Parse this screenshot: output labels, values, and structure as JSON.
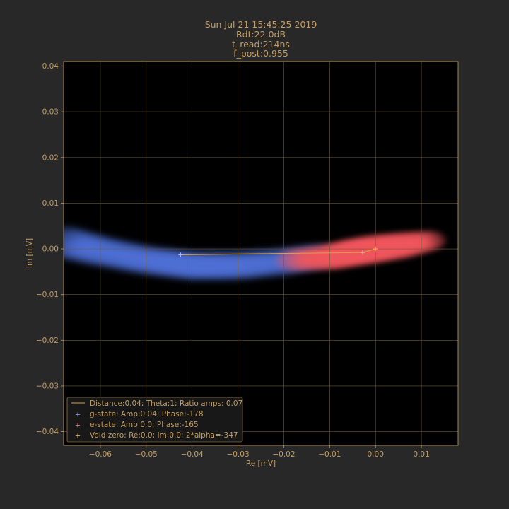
{
  "chart_data": {
    "type": "scatter",
    "title_lines": [
      "Sun Jul 21 15:45:25 2019",
      "Rdt:22.0dB",
      "t_read:214ns",
      "f_post:0.955"
    ],
    "xlabel": "Re [mV]",
    "ylabel": "Im [mV]",
    "xlim": [
      -0.068,
      0.018
    ],
    "ylim": [
      -0.043,
      0.041
    ],
    "xticks": [
      -0.06,
      -0.05,
      -0.04,
      -0.03,
      -0.02,
      -0.01,
      0.0,
      0.01
    ],
    "xtick_labels": [
      "−0.06",
      "−0.05",
      "−0.04",
      "−0.03",
      "−0.02",
      "−0.01",
      "0.00",
      "0.01"
    ],
    "yticks": [
      0.04,
      0.03,
      0.02,
      0.01,
      0.0,
      -0.01,
      -0.02,
      -0.03,
      -0.04
    ],
    "ytick_labels": [
      "0.04",
      "0.03",
      "0.02",
      "0.01",
      "0.00",
      "−0.01",
      "−0.02",
      "−0.03",
      "−0.04"
    ],
    "grid": true,
    "legend_position": "lower-left",
    "colors": {
      "background": "#282828",
      "plot_background": "#000000",
      "text": "#c49e61",
      "grid": "#6b5a3a",
      "g_state": "#4d6fd6",
      "e_state": "#f0555c",
      "line": "#d6a23c",
      "marker": "#d6b880"
    },
    "clouds": [
      {
        "name": "g-state",
        "path": [
          [
            -0.068,
            0.0015
          ],
          [
            -0.06,
            -0.0005
          ],
          [
            -0.05,
            -0.0025
          ],
          [
            -0.04,
            -0.0037
          ],
          [
            -0.03,
            -0.0037
          ],
          [
            -0.02,
            -0.0028
          ],
          [
            -0.012,
            -0.0015
          ]
        ],
        "spread": [
          0.0035,
          0.0032,
          0.003,
          0.003,
          0.003,
          0.0029,
          0.0026
        ]
      },
      {
        "name": "e-state",
        "path": [
          [
            -0.018,
            -0.0025
          ],
          [
            -0.01,
            -0.0018
          ],
          [
            -0.005,
            -0.0008
          ],
          [
            0.0,
            0.0
          ],
          [
            0.006,
            0.0008
          ],
          [
            0.012,
            0.0018
          ]
        ],
        "spread": [
          0.0024,
          0.0028,
          0.003,
          0.003,
          0.0028,
          0.0022
        ]
      }
    ],
    "distance_line": [
      [
        -0.0425,
        -0.0013
      ],
      [
        -0.0028,
        -0.0008
      ],
      [
        0.0,
        0.0
      ]
    ],
    "points": [
      {
        "name": "g-state",
        "x": -0.0425,
        "y": -0.0013
      },
      {
        "name": "e-state",
        "x": -0.0028,
        "y": -0.0008
      },
      {
        "name": "void-zero",
        "x": 0.0,
        "y": 0.0
      }
    ],
    "legend": [
      {
        "kind": "line",
        "label": "Distance:0.04; Theta:1; Ratio amps: 0.07"
      },
      {
        "kind": "g-marker",
        "label": "g-state: Amp:0.04; Phase:-178"
      },
      {
        "kind": "e-marker",
        "label": "e-state: Amp:0.0; Phase:-165"
      },
      {
        "kind": "void-marker",
        "label": "Void zero: Re:0.0; Im:0.0; 2*alpha=-347"
      }
    ]
  }
}
